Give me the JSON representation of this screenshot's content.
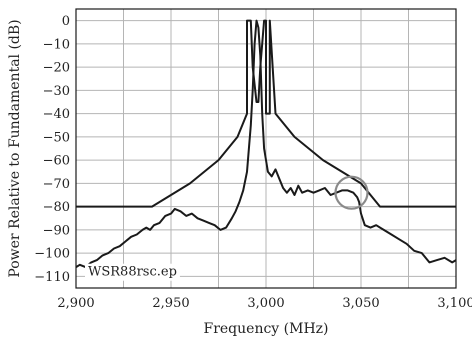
{
  "chart_data": {
    "type": "line",
    "xlabel": "Frequency (MHz)",
    "ylabel": "Power Relative to Fundamental (dB)",
    "xlim": [
      2900,
      3100
    ],
    "ylim": [
      -115,
      5
    ],
    "x_ticks": [
      2900,
      2925,
      2950,
      2975,
      3000,
      3025,
      3050,
      3075,
      3100
    ],
    "x_tick_labels": [
      "2,900",
      "",
      "2,950",
      "",
      "3,000",
      "",
      "3,050",
      "",
      "3,100"
    ],
    "y_ticks": [
      0,
      -10,
      -20,
      -30,
      -40,
      -50,
      -60,
      -70,
      -80,
      -90,
      -100,
      -110
    ],
    "y_tick_labels": [
      "0",
      "−10",
      "−20",
      "−30",
      "−40",
      "−50",
      "−60",
      "−70",
      "−80",
      "−90",
      "−100",
      "−110"
    ],
    "grid": true,
    "annotation": "WSR88rsc.ep",
    "highlight_circle": {
      "x": 3045,
      "y": -74
    },
    "colors": {
      "line": "#1a1a1a",
      "grid": "#b5b5b5",
      "circle": "#8a8a8a"
    },
    "series": [
      {
        "x": [
          2900,
          2940,
          2960,
          2975,
          2985,
          2990,
          2990,
          2992,
          2993,
          2995,
          2996,
          2997,
          2999,
          3000,
          3000,
          3002,
          3002,
          3005,
          3015,
          3030,
          3050,
          3060,
          3100
        ],
        "y": [
          -80,
          -80,
          -70,
          -60,
          -50,
          -40,
          0,
          0,
          -20,
          -35,
          -35,
          -20,
          0,
          0,
          -40,
          -40,
          0,
          -40,
          -50,
          -60,
          -70,
          -80,
          -80
        ]
      },
      {
        "x": [
          2900,
          2902,
          2905,
          2908,
          2911,
          2914,
          2917,
          2920,
          2923,
          2926,
          2929,
          2932,
          2935,
          2937,
          2939,
          2941,
          2944,
          2947,
          2950,
          2952,
          2955,
          2958,
          2961,
          2964,
          2967,
          2970,
          2973,
          2976,
          2979,
          2982,
          2984,
          2986,
          2988,
          2990,
          2991,
          2992,
          2993,
          2994,
          2995,
          2996,
          2997,
          2998,
          2999,
          3000,
          3001,
          3003,
          3005,
          3007,
          3009,
          3011,
          3013,
          3015,
          3017,
          3019,
          3022,
          3025,
          3028,
          3031,
          3034,
          3037,
          3040,
          3043,
          3046,
          3048,
          3049,
          3050,
          3052,
          3055,
          3058,
          3062,
          3066,
          3070,
          3074,
          3078,
          3082,
          3086,
          3090,
          3094,
          3098,
          3100
        ],
        "y": [
          -106,
          -105,
          -106,
          -104,
          -103,
          -101,
          -100,
          -98,
          -97,
          -95,
          -93,
          -92,
          -90,
          -89,
          -90,
          -88,
          -87,
          -84,
          -83,
          -81,
          -82,
          -84,
          -83,
          -85,
          -86,
          -87,
          -88,
          -90,
          -89,
          -85,
          -82,
          -78,
          -73,
          -65,
          -55,
          -45,
          -30,
          -10,
          0,
          -3,
          -15,
          -40,
          -55,
          -60,
          -65,
          -67,
          -64,
          -68,
          -72,
          -74,
          -72,
          -75,
          -71,
          -74,
          -73,
          -74,
          -73,
          -72,
          -75,
          -74,
          -73,
          -73,
          -74,
          -76,
          -78,
          -83,
          -88,
          -89,
          -88,
          -90,
          -92,
          -94,
          -96,
          -99,
          -100,
          -104,
          -103,
          -102,
          -104,
          -103
        ]
      }
    ]
  }
}
